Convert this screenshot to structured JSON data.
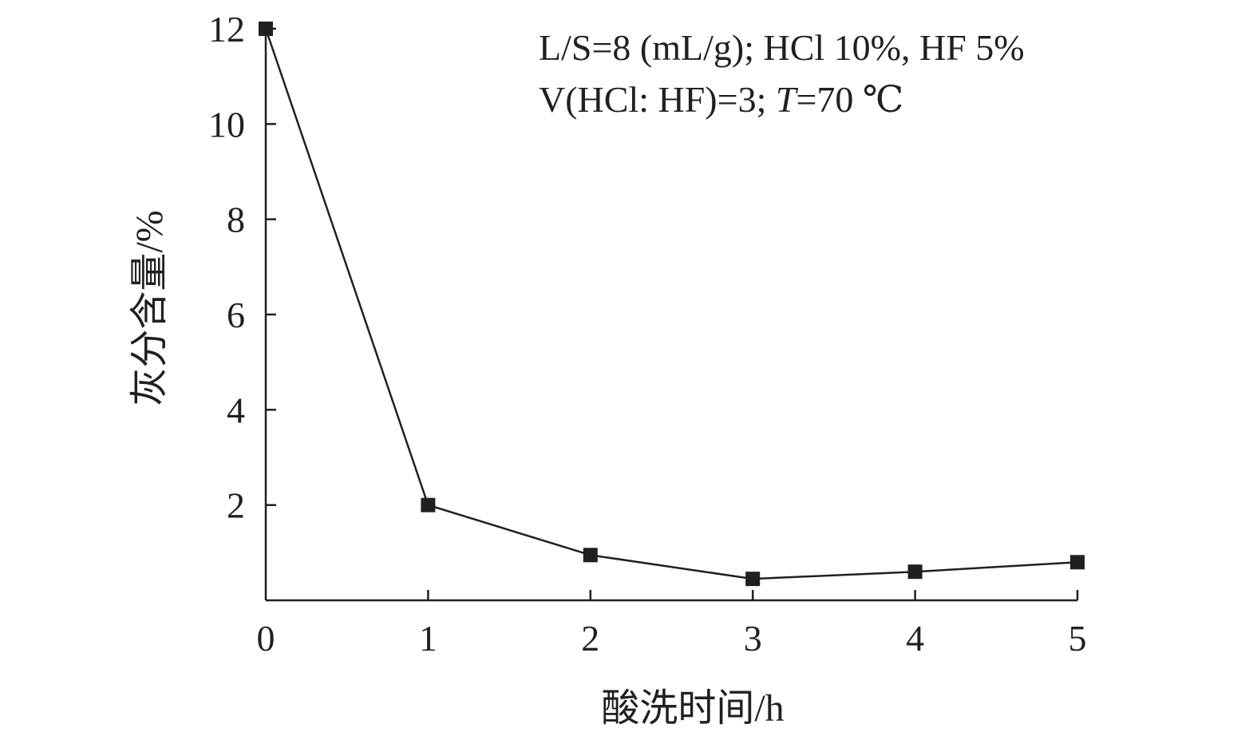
{
  "chart_data": {
    "type": "line",
    "x": [
      0,
      1,
      2,
      3,
      4,
      5
    ],
    "series": [
      {
        "values": [
          12.0,
          2.0,
          0.95,
          0.45,
          0.6,
          0.8
        ]
      }
    ],
    "xlabel": "酸洗时间/h",
    "ylabel": "灰分含量/%",
    "xlim": [
      0,
      5
    ],
    "ylim": [
      0,
      12
    ],
    "xticks": [
      "0",
      "1",
      "2",
      "3",
      "4",
      "5"
    ],
    "yticks": [
      "2",
      "4",
      "6",
      "8",
      "10",
      "12"
    ],
    "annotation": {
      "line1": "L/S=8 (mL/g); HCl 10%, HF 5%",
      "line2_prefix": "V(HCl: HF)=3; ",
      "line2_italic": "T",
      "line2_suffix": "=70 ℃"
    },
    "grid": false,
    "marker": "square",
    "color": "#231f20"
  }
}
